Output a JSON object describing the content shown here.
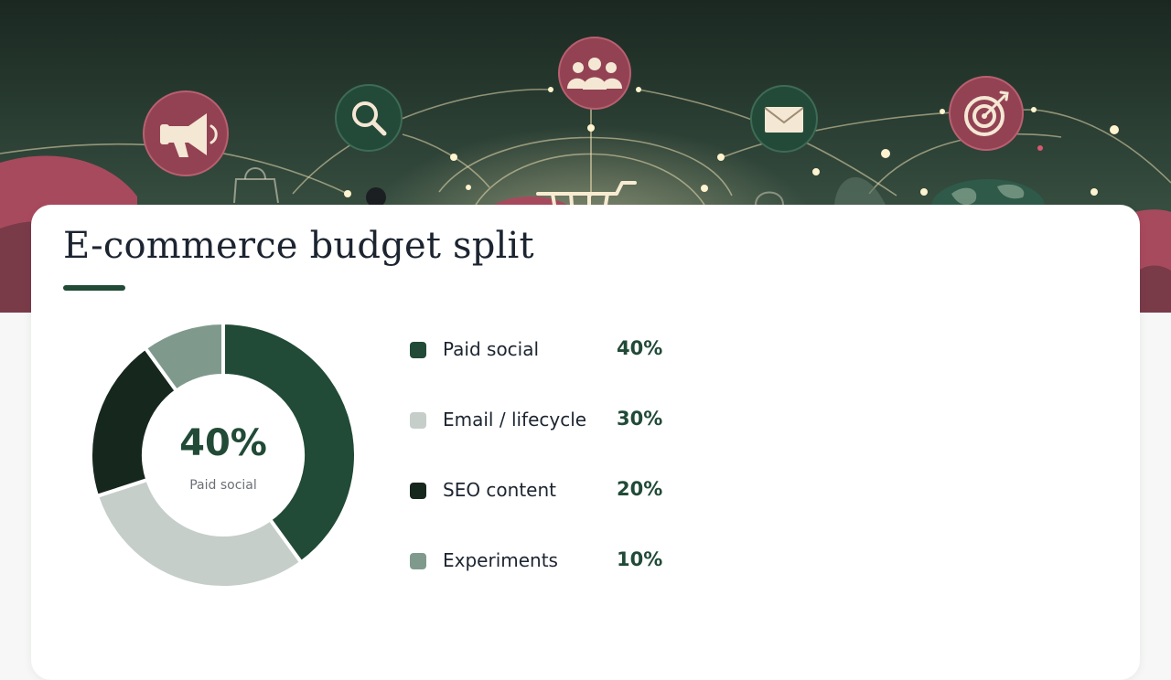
{
  "colors": {
    "primary": "#214a37",
    "accent": "#a84a5e",
    "hero_bg": "#1d2e25"
  },
  "hero": {
    "icons": [
      "megaphone-icon",
      "search-icon",
      "people-icon",
      "mail-icon",
      "target-icon",
      "shopping-cart-icon",
      "globe-icon"
    ]
  },
  "chart_data": {
    "type": "pie",
    "title": "E-commerce budget split",
    "unit": "%",
    "slices": [
      {
        "label": "Paid social",
        "value": 40,
        "display": "40%",
        "color": "#214a37"
      },
      {
        "label": "Email / lifecycle",
        "value": 30,
        "display": "30%",
        "color": "#c5cec9"
      },
      {
        "label": "SEO content",
        "value": 20,
        "display": "20%",
        "color": "#16271e"
      },
      {
        "label": "Experiments",
        "value": 10,
        "display": "10%",
        "color": "#7f9a8c"
      }
    ],
    "center": {
      "value": "40%",
      "label": "Paid social"
    },
    "legend_position": "right"
  }
}
